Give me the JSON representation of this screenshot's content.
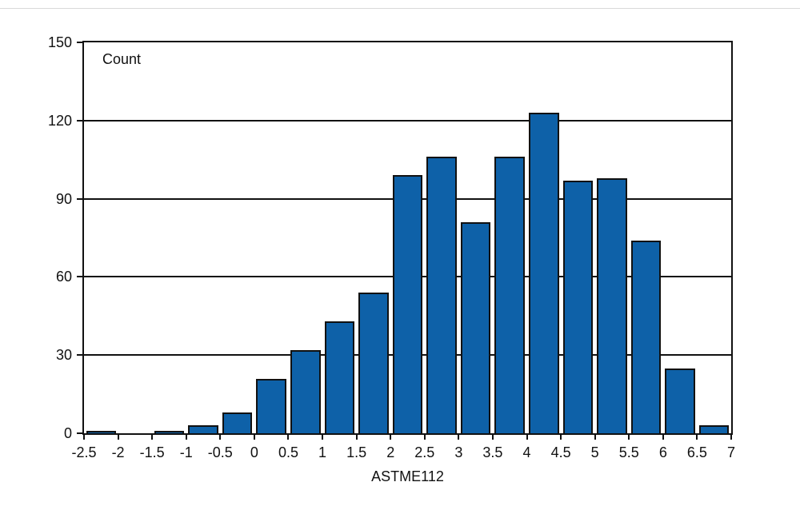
{
  "chart_data": {
    "type": "bar",
    "subtype": "histogram",
    "title": "",
    "inner_label": "Count",
    "xlabel": "ASTME112",
    "ylabel": "",
    "ylim": [
      0,
      150
    ],
    "y_ticks": [
      0,
      30,
      60,
      90,
      120,
      150
    ],
    "bin_edges": [
      -2.5,
      -2,
      -1.5,
      -1,
      -0.5,
      0,
      0.5,
      1,
      1.5,
      2,
      2.5,
      3,
      3.5,
      4,
      4.5,
      5,
      5.5,
      6,
      6.5,
      7
    ],
    "x_tick_labels": [
      "-2.5",
      "-2",
      "-1.5",
      "-1",
      "-0.5",
      "0",
      "0.5",
      "1",
      "1.5",
      "2",
      "2.5",
      "3",
      "3.5",
      "4",
      "4.5",
      "5",
      "5.5",
      "6",
      "6.5",
      "7"
    ],
    "values": [
      1,
      0,
      1,
      3,
      8,
      21,
      32,
      43,
      54,
      99,
      106,
      81,
      106,
      123,
      97,
      98,
      74,
      25,
      3
    ],
    "bar_color": "#0E61A8",
    "bar_border_color": "#111111",
    "grid": true,
    "gridline_values": [
      30,
      60,
      90,
      120
    ],
    "legend_position": "none"
  }
}
